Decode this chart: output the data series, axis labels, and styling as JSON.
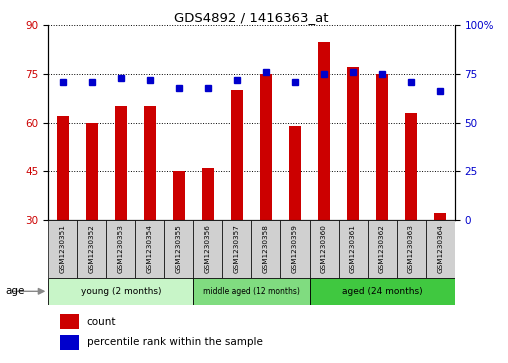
{
  "title": "GDS4892 / 1416363_at",
  "samples": [
    "GSM1230351",
    "GSM1230352",
    "GSM1230353",
    "GSM1230354",
    "GSM1230355",
    "GSM1230356",
    "GSM1230357",
    "GSM1230358",
    "GSM1230359",
    "GSM1230360",
    "GSM1230361",
    "GSM1230362",
    "GSM1230363",
    "GSM1230364"
  ],
  "counts": [
    62,
    60,
    65,
    65,
    45,
    46,
    70,
    75,
    59,
    85,
    77,
    75,
    63,
    32
  ],
  "percentile_ranks": [
    71,
    71,
    73,
    72,
    68,
    68,
    72,
    76,
    71,
    75,
    76,
    75,
    71,
    66
  ],
  "ylim_left": [
    30,
    90
  ],
  "ylim_right": [
    0,
    100
  ],
  "yticks_left": [
    30,
    45,
    60,
    75,
    90
  ],
  "yticks_right": [
    0,
    25,
    50,
    75,
    100
  ],
  "bar_color": "#cc0000",
  "dot_color": "#0000cc",
  "groups": [
    {
      "label": "young (2 months)",
      "start": 0,
      "end": 5,
      "color": "#c8f5c8"
    },
    {
      "label": "middle aged (12 months)",
      "start": 5,
      "end": 9,
      "color": "#80dc80"
    },
    {
      "label": "aged (24 months)",
      "start": 9,
      "end": 14,
      "color": "#40c840"
    }
  ],
  "group_row_label": "age",
  "legend_items": [
    {
      "label": "count",
      "color": "#cc0000"
    },
    {
      "label": "percentile rank within the sample",
      "color": "#0000cc"
    }
  ],
  "background_color": "#ffffff",
  "tick_label_color_left": "#cc0000",
  "tick_label_color_right": "#0000cc",
  "sample_box_color": "#d0d0d0",
  "bar_width": 0.4
}
